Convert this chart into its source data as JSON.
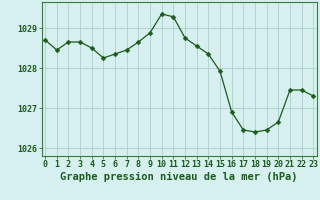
{
  "x": [
    0,
    1,
    2,
    3,
    4,
    5,
    6,
    7,
    8,
    9,
    10,
    11,
    12,
    13,
    14,
    15,
    16,
    17,
    18,
    19,
    20,
    21,
    22,
    23
  ],
  "y": [
    1028.7,
    1028.45,
    1028.65,
    1028.65,
    1028.5,
    1028.25,
    1028.35,
    1028.45,
    1028.65,
    1028.88,
    1029.35,
    1029.28,
    1028.75,
    1028.55,
    1028.35,
    1027.92,
    1026.9,
    1026.45,
    1026.4,
    1026.45,
    1026.65,
    1027.45,
    1027.45,
    1027.3
  ],
  "line_color": "#1a5c1a",
  "marker": "D",
  "marker_size": 2.5,
  "bg_color": "#d6f0f0",
  "grid_color": "#b0cece",
  "xlabel": "Graphe pression niveau de la mer (hPa)",
  "xlabel_color": "#1a5c1a",
  "xlabel_fontsize": 7.5,
  "tick_color": "#1a5c1a",
  "tick_fontsize": 6,
  "ylim": [
    1025.8,
    1029.65
  ],
  "yticks": [
    1026,
    1027,
    1028,
    1029
  ],
  "xticks": [
    0,
    1,
    2,
    3,
    4,
    5,
    6,
    7,
    8,
    9,
    10,
    11,
    12,
    13,
    14,
    15,
    16,
    17,
    18,
    19,
    20,
    21,
    22,
    23
  ],
  "spine_color": "#3a7a3a",
  "xlim_left": -0.3,
  "xlim_right": 23.3
}
